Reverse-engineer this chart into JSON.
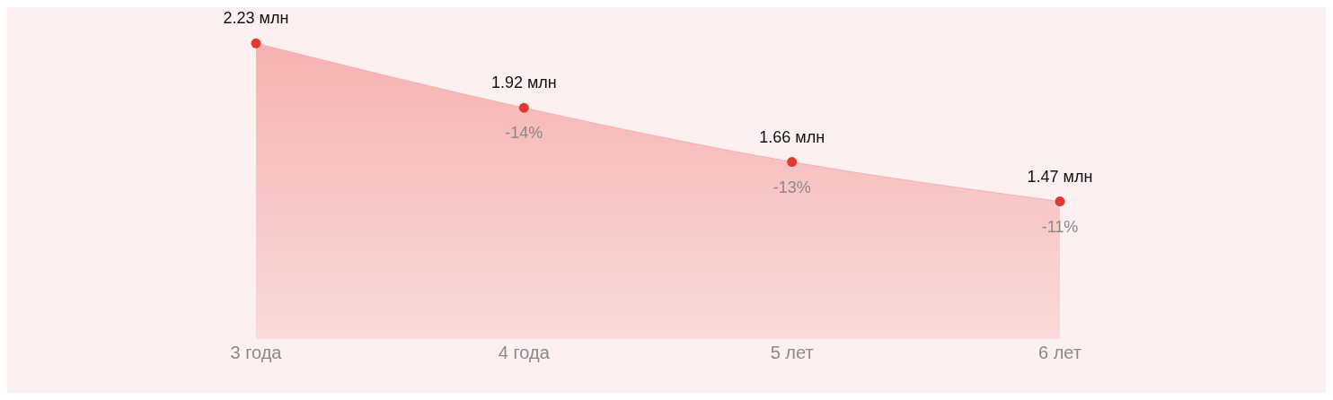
{
  "chart_data": {
    "type": "area",
    "categories": [
      "3 года",
      "4 года",
      "5 лет",
      "6 лет"
    ],
    "series": [
      {
        "color": "#f6b1b1",
        "values": [
          2.23,
          1.92,
          1.66,
          1.47
        ],
        "value_labels": [
          "2.23 млн",
          "1.92 млн",
          "1.66 млн",
          "1.47 млн"
        ]
      }
    ],
    "tick_labels": "x",
    "marker": "circle",
    "annotations": [
      "-14%",
      "-13%",
      "-11%"
    ]
  }
}
